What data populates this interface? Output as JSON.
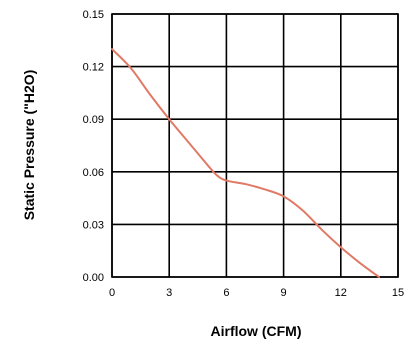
{
  "chart_data": {
    "type": "line",
    "title": "",
    "xlabel": "Airflow (CFM)",
    "ylabel": "Static Pressure  (\"H2O)",
    "xlim": [
      0,
      15
    ],
    "ylim": [
      0,
      0.15
    ],
    "x_ticks": [
      "0",
      "3",
      "6",
      "9",
      "12",
      "15"
    ],
    "y_ticks": [
      "0.00",
      "0.03",
      "0.06",
      "0.09",
      "0.12",
      "0.15"
    ],
    "grid": true,
    "legend": "none",
    "series": [
      {
        "color": "#e07a66",
        "x": [
          0,
          1.0,
          2.0,
          3.0,
          4.0,
          5.0,
          5.5,
          6.0,
          7.0,
          8.0,
          9.0,
          10.0,
          11.0,
          12.0,
          13.0,
          14.0
        ],
        "y": [
          0.13,
          0.119,
          0.104,
          0.09,
          0.077,
          0.064,
          0.058,
          0.055,
          0.053,
          0.05,
          0.046,
          0.038,
          0.027,
          0.017,
          0.008,
          0.0
        ]
      }
    ]
  }
}
